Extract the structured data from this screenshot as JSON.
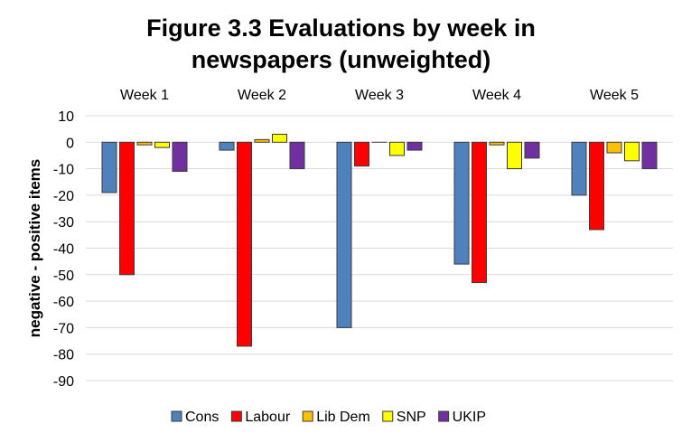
{
  "chart_data": {
    "type": "bar",
    "title": [
      "Figure 3.3 Evaluations by week in",
      "newspapers (unweighted)"
    ],
    "ylabel": "negative - positive items",
    "xlabel": "",
    "categories": [
      "Week 1",
      "Week 2",
      "Week 3",
      "Week 4",
      "Week 5"
    ],
    "ylim": [
      -90,
      10
    ],
    "yticks": [
      10,
      0,
      -10,
      -20,
      -30,
      -40,
      -50,
      -60,
      -70,
      -80,
      -90
    ],
    "grid": true,
    "legend": "bottom",
    "series": [
      {
        "name": "Cons",
        "color": "#4f81bd",
        "values": [
          -19,
          -3,
          -70,
          -46,
          -20
        ]
      },
      {
        "name": "Labour",
        "color": "#ff0000",
        "values": [
          -50,
          -77,
          -9,
          -53,
          -33
        ]
      },
      {
        "name": "Lib Dem",
        "color": "#ffc000",
        "values": [
          -1,
          1,
          0,
          -1,
          -4
        ]
      },
      {
        "name": "SNP",
        "color": "#ffff00",
        "values": [
          -2,
          3,
          -5,
          -10,
          -7
        ]
      },
      {
        "name": "UKIP",
        "color": "#7030a0",
        "values": [
          -11,
          -10,
          -3,
          -6,
          -10
        ]
      }
    ]
  }
}
